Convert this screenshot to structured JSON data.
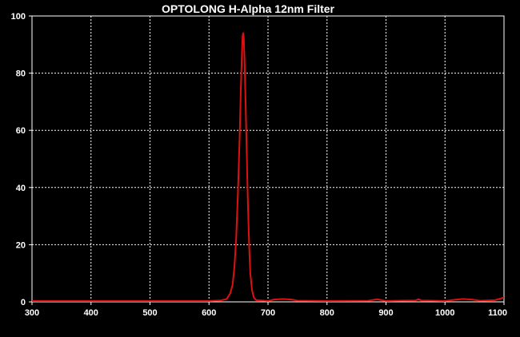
{
  "chart_data": {
    "type": "line",
    "title": "OPTOLONG H-Alpha 12nm Filter",
    "xlabel": "",
    "ylabel": "",
    "xlim": [
      300,
      1100
    ],
    "ylim": [
      0,
      100
    ],
    "x_ticks": [
      300,
      400,
      500,
      600,
      700,
      800,
      900,
      1000,
      1100
    ],
    "y_ticks": [
      0,
      20,
      40,
      60,
      80,
      100
    ],
    "grid": true,
    "legend": "none",
    "colors": {
      "background": "#000000",
      "grid": "#ffffff",
      "line": "#e01010",
      "text": "#ffffff"
    },
    "series": [
      {
        "values": [
          [
            300,
            0.3
          ],
          [
            400,
            0.3
          ],
          [
            500,
            0.3
          ],
          [
            600,
            0.3
          ],
          [
            620,
            0.5
          ],
          [
            630,
            1
          ],
          [
            636,
            3
          ],
          [
            640,
            6
          ],
          [
            643,
            12
          ],
          [
            646,
            22
          ],
          [
            649,
            38
          ],
          [
            652,
            58
          ],
          [
            654,
            75
          ],
          [
            656,
            88
          ],
          [
            657,
            93
          ],
          [
            658,
            94
          ],
          [
            659,
            92
          ],
          [
            660,
            86
          ],
          [
            662,
            70
          ],
          [
            664,
            52
          ],
          [
            666,
            34
          ],
          [
            668,
            20
          ],
          [
            670,
            10
          ],
          [
            673,
            4
          ],
          [
            676,
            1.5
          ],
          [
            680,
            0.6
          ],
          [
            700,
            0.3
          ],
          [
            710,
            0.8
          ],
          [
            725,
            1
          ],
          [
            740,
            0.8
          ],
          [
            750,
            0.4
          ],
          [
            800,
            0.3
          ],
          [
            870,
            0.4
          ],
          [
            885,
            0.9
          ],
          [
            890,
            0.7
          ],
          [
            900,
            0.3
          ],
          [
            950,
            0.5
          ],
          [
            955,
            0.9
          ],
          [
            960,
            0.5
          ],
          [
            1000,
            0.3
          ],
          [
            1020,
            0.8
          ],
          [
            1030,
            1
          ],
          [
            1045,
            0.8
          ],
          [
            1060,
            0.4
          ],
          [
            1085,
            0.6
          ],
          [
            1095,
            1.2
          ],
          [
            1100,
            1.5
          ]
        ]
      }
    ]
  }
}
